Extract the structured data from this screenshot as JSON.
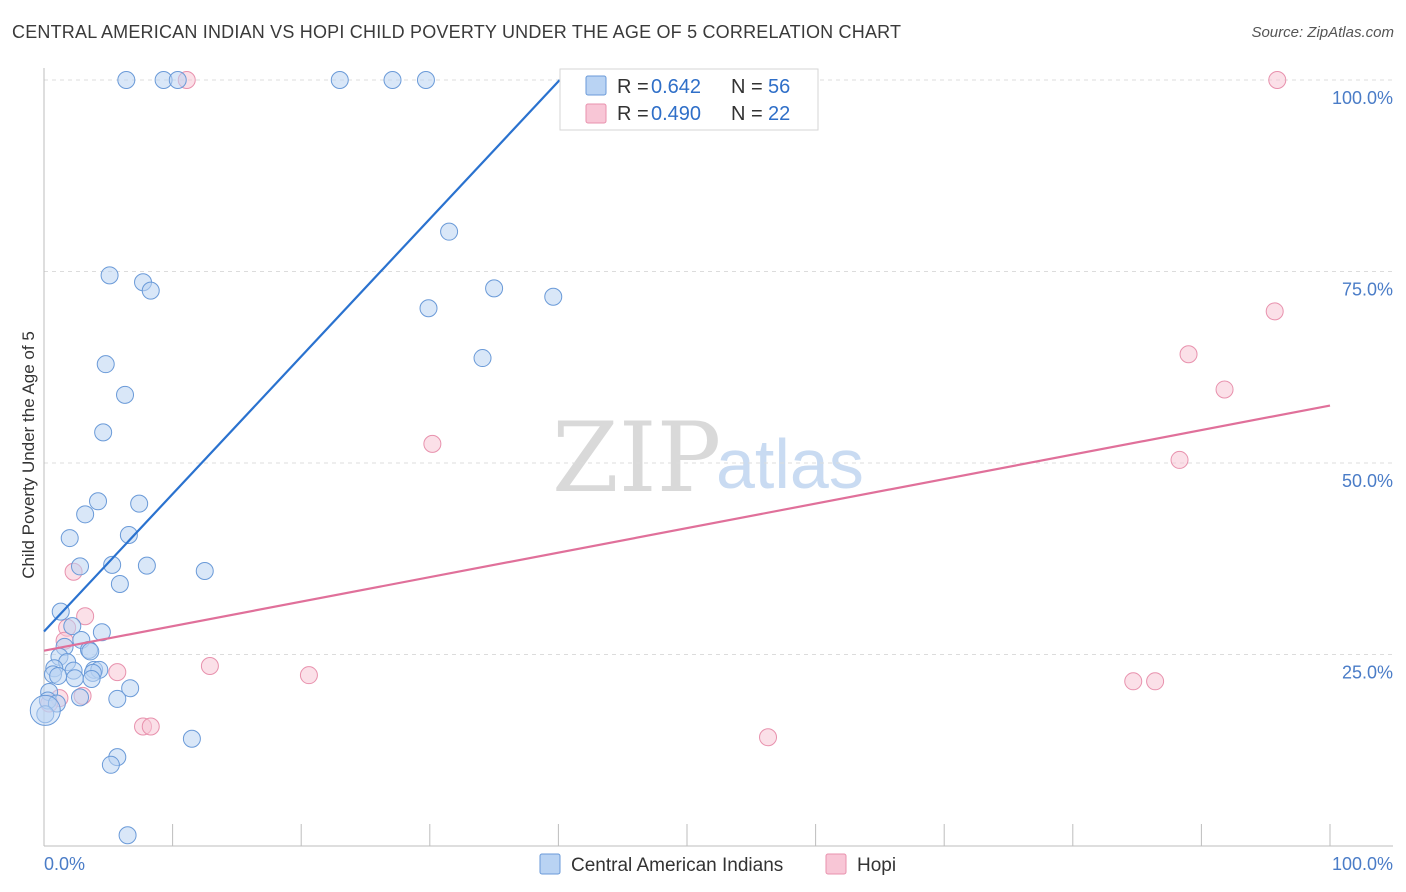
{
  "title": "CENTRAL AMERICAN INDIAN VS HOPI CHILD POVERTY UNDER THE AGE OF 5 CORRELATION CHART",
  "source": "Source: ZipAtlas.com",
  "watermark": {
    "zip": "ZIP",
    "atlas": "atlas"
  },
  "colors": {
    "blue_fill": "#b9d3f3",
    "blue_stroke": "#6a9ad8",
    "blue_line": "#2a72cf",
    "pink_fill": "#f8c6d6",
    "pink_stroke": "#e891ad",
    "pink_line": "#e0709a",
    "grid": "#dcdcdc",
    "axis_text": "#4a7cc7"
  },
  "chart_data": {
    "type": "scatter",
    "title": "CENTRAL AMERICAN INDIAN VS HOPI CHILD POVERTY UNDER THE AGE OF 5 CORRELATION CHART",
    "xlabel": "",
    "ylabel": "Child Poverty Under the Age of 5",
    "xlim": [
      0,
      100
    ],
    "ylim": [
      0,
      100
    ],
    "x_tick_labels": [
      "0.0%",
      "100.0%"
    ],
    "y_ticks": [
      {
        "value": 100,
        "label": "100.0%"
      },
      {
        "value": 75,
        "label": "75.0%"
      },
      {
        "value": 50,
        "label": "50.0%"
      },
      {
        "value": 25,
        "label": "25.0%"
      }
    ],
    "legend_stats": [
      {
        "r_label": "R = ",
        "r_value": "0.642",
        "n_label": "N = ",
        "n_value": "56"
      },
      {
        "r_label": "R = ",
        "r_value": "0.490",
        "n_label": "N = ",
        "n_value": "22"
      }
    ],
    "series": [
      {
        "name": "Central American Indians",
        "color": "blue",
        "trendline": {
          "x": [
            0,
            40.1
          ],
          "y": [
            28.0,
            100
          ]
        },
        "points": [
          [
            6.4,
            100
          ],
          [
            9.3,
            100
          ],
          [
            10.4,
            100
          ],
          [
            23.0,
            100
          ],
          [
            27.1,
            100
          ],
          [
            29.7,
            100
          ],
          [
            31.5,
            80.2
          ],
          [
            5.1,
            74.5
          ],
          [
            7.7,
            73.6
          ],
          [
            8.3,
            72.5
          ],
          [
            35.0,
            72.8
          ],
          [
            39.6,
            71.7
          ],
          [
            29.9,
            70.2
          ],
          [
            34.1,
            63.7
          ],
          [
            4.8,
            62.9
          ],
          [
            6.3,
            58.9
          ],
          [
            4.6,
            54.0
          ],
          [
            4.2,
            45.0
          ],
          [
            7.4,
            44.7
          ],
          [
            3.2,
            43.3
          ],
          [
            6.6,
            40.6
          ],
          [
            2.0,
            40.2
          ],
          [
            2.8,
            36.5
          ],
          [
            5.3,
            36.7
          ],
          [
            8.0,
            36.6
          ],
          [
            12.5,
            35.9
          ],
          [
            5.9,
            34.2
          ],
          [
            1.3,
            30.6
          ],
          [
            2.2,
            28.7
          ],
          [
            4.5,
            27.9
          ],
          [
            2.9,
            26.9
          ],
          [
            1.6,
            26.0
          ],
          [
            3.5,
            25.6
          ],
          [
            3.6,
            25.4
          ],
          [
            1.2,
            24.7
          ],
          [
            1.8,
            24.0
          ],
          [
            0.8,
            23.2
          ],
          [
            2.3,
            22.9
          ],
          [
            3.9,
            23.0
          ],
          [
            4.3,
            23.0
          ],
          [
            3.8,
            22.6
          ],
          [
            0.7,
            22.4
          ],
          [
            1.1,
            22.2
          ],
          [
            2.4,
            21.9
          ],
          [
            3.7,
            21.8
          ],
          [
            6.7,
            20.6
          ],
          [
            0.4,
            20.1
          ],
          [
            2.8,
            19.4
          ],
          [
            5.7,
            19.2
          ],
          [
            0.3,
            19.0
          ],
          [
            1.0,
            18.6
          ],
          [
            11.5,
            14.0
          ],
          [
            5.7,
            11.6
          ],
          [
            5.2,
            10.6
          ],
          [
            6.5,
            1.4
          ],
          [
            0.1,
            17.2
          ]
        ]
      },
      {
        "name": "Hopi",
        "color": "pink",
        "trendline": {
          "x": [
            0,
            100
          ],
          "y": [
            25.5,
            57.5
          ]
        },
        "points": [
          [
            11.1,
            100
          ],
          [
            95.9,
            100
          ],
          [
            95.7,
            69.8
          ],
          [
            89.0,
            64.2
          ],
          [
            91.8,
            59.6
          ],
          [
            30.2,
            52.5
          ],
          [
            88.3,
            50.4
          ],
          [
            2.3,
            35.8
          ],
          [
            3.2,
            30.0
          ],
          [
            1.8,
            28.5
          ],
          [
            1.6,
            26.8
          ],
          [
            12.9,
            23.5
          ],
          [
            5.7,
            22.7
          ],
          [
            20.6,
            22.3
          ],
          [
            3.0,
            19.6
          ],
          [
            1.2,
            19.3
          ],
          [
            0.4,
            18.6
          ],
          [
            7.7,
            15.6
          ],
          [
            8.3,
            15.6
          ],
          [
            56.3,
            14.2
          ],
          [
            84.7,
            21.5
          ],
          [
            86.4,
            21.5
          ]
        ]
      }
    ]
  }
}
